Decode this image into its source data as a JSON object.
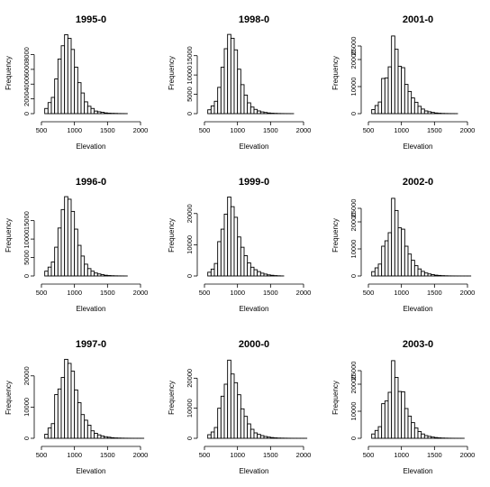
{
  "chart_data": [
    {
      "type": "bar",
      "title": "1995-0",
      "xlabel": "Elevation",
      "ylabel": "Frequency",
      "xlim": [
        500,
        2000
      ],
      "bin_width": 50,
      "x_ticks": [
        500,
        1000,
        1500,
        2000
      ],
      "y_ticks": [
        0,
        2000,
        4000,
        6000,
        8000
      ],
      "y_tick_labels": [
        "0",
        "2000",
        "4000",
        "6000",
        "8000"
      ],
      "ylim": [
        0,
        11000
      ],
      "bin_starts": [
        550,
        600,
        650,
        700,
        750,
        800,
        850,
        900,
        950,
        1000,
        1050,
        1100,
        1150,
        1200,
        1250,
        1300,
        1350,
        1400,
        1450,
        1500,
        1550,
        1600,
        1650,
        1700,
        1750
      ],
      "values": [
        700,
        1500,
        2200,
        4700,
        7400,
        9200,
        10700,
        10200,
        8700,
        6300,
        4200,
        2800,
        1600,
        1000,
        700,
        350,
        250,
        180,
        100,
        60,
        40,
        30,
        15,
        10,
        5
      ]
    },
    {
      "type": "bar",
      "title": "1998-0",
      "xlabel": "Elevation",
      "ylabel": "Frequency",
      "xlim": [
        500,
        2000
      ],
      "bin_width": 50,
      "x_ticks": [
        500,
        1000,
        1500,
        2000
      ],
      "y_ticks": [
        0,
        5000,
        10000,
        15000
      ],
      "y_tick_labels": [
        "0",
        "5000",
        "10000",
        "15000"
      ],
      "ylim": [
        0,
        21000
      ],
      "bin_starts": [
        550,
        600,
        650,
        700,
        750,
        800,
        850,
        900,
        950,
        1000,
        1050,
        1100,
        1150,
        1200,
        1250,
        1300,
        1350,
        1400,
        1450,
        1500,
        1550,
        1600,
        1650,
        1700,
        1750,
        1800
      ],
      "values": [
        1000,
        2000,
        3200,
        6800,
        12000,
        16800,
        20500,
        19500,
        16500,
        11500,
        7500,
        4800,
        2800,
        1700,
        1100,
        700,
        450,
        300,
        180,
        110,
        70,
        40,
        25,
        15,
        10,
        5
      ]
    },
    {
      "type": "bar",
      "title": "2001-0",
      "xlabel": "Elevation",
      "ylabel": "Frequency",
      "xlim": [
        500,
        2000
      ],
      "bin_width": 50,
      "x_ticks": [
        500,
        1000,
        1500,
        2000
      ],
      "y_ticks": [
        0,
        10000,
        20000,
        25000
      ],
      "y_tick_labels": [
        "0",
        "10000",
        "20000",
        "25000"
      ],
      "ylim": [
        0,
        30000
      ],
      "bin_starts": [
        550,
        600,
        650,
        700,
        750,
        800,
        850,
        900,
        950,
        1000,
        1050,
        1100,
        1150,
        1200,
        1250,
        1300,
        1350,
        1400,
        1450,
        1500,
        1550,
        1600,
        1650,
        1700,
        1750,
        1800
      ],
      "values": [
        1500,
        3000,
        4300,
        13000,
        13200,
        17300,
        28700,
        23800,
        17500,
        17000,
        10800,
        8200,
        5800,
        4200,
        2700,
        1700,
        1000,
        700,
        450,
        250,
        150,
        80,
        50,
        30,
        20,
        10
      ]
    },
    {
      "type": "bar",
      "title": "1996-0",
      "xlabel": "Elevation",
      "ylabel": "Frequency",
      "xlim": [
        500,
        2000
      ],
      "bin_width": 50,
      "x_ticks": [
        500,
        1000,
        1500,
        2000
      ],
      "y_ticks": [
        0,
        5000,
        10000,
        15000
      ],
      "y_tick_labels": [
        "0",
        "5000",
        "10000",
        "15000"
      ],
      "ylim": [
        0,
        22000
      ],
      "bin_starts": [
        550,
        600,
        650,
        700,
        750,
        800,
        850,
        900,
        950,
        1000,
        1050,
        1100,
        1150,
        1200,
        1250,
        1300,
        1350,
        1400,
        1450,
        1500,
        1550,
        1600,
        1650,
        1700,
        1750
      ],
      "values": [
        1300,
        2400,
        3800,
        7800,
        13000,
        18000,
        21500,
        20800,
        17500,
        12700,
        8300,
        5400,
        3200,
        2000,
        1300,
        800,
        550,
        350,
        200,
        120,
        70,
        40,
        25,
        15,
        5
      ]
    },
    {
      "type": "bar",
      "title": "1999-0",
      "xlabel": "Elevation",
      "ylabel": "Frequency",
      "xlim": [
        500,
        2000
      ],
      "bin_width": 50,
      "x_ticks": [
        500,
        1000,
        1500,
        2000
      ],
      "y_ticks": [
        0,
        10000,
        20000
      ],
      "y_tick_labels": [
        "0",
        "10000",
        "20000"
      ],
      "ylim": [
        0,
        26000
      ],
      "bin_starts": [
        550,
        600,
        650,
        700,
        750,
        800,
        850,
        900,
        950,
        1000,
        1050,
        1100,
        1150,
        1200,
        1250,
        1300,
        1350,
        1400,
        1450,
        1500,
        1550,
        1600,
        1650
      ],
      "values": [
        1200,
        2200,
        4000,
        11000,
        15000,
        19800,
        25300,
        22200,
        18800,
        12500,
        9200,
        6500,
        4200,
        2800,
        2000,
        1400,
        900,
        600,
        350,
        220,
        120,
        60,
        20
      ]
    },
    {
      "type": "bar",
      "title": "2002-0",
      "xlabel": "Elevation",
      "ylabel": "Frequency",
      "xlim": [
        500,
        2000
      ],
      "bin_width": 50,
      "x_ticks": [
        500,
        1000,
        1500,
        2000
      ],
      "y_ticks": [
        0,
        10000,
        20000,
        25000
      ],
      "y_tick_labels": [
        "0",
        "10000",
        "20000",
        "25000"
      ],
      "ylim": [
        0,
        30000
      ],
      "bin_starts": [
        550,
        600,
        650,
        700,
        750,
        800,
        850,
        900,
        950,
        1000,
        1050,
        1100,
        1150,
        1200,
        1250,
        1300,
        1350,
        1400,
        1450,
        1500,
        1550,
        1600,
        1650,
        1700,
        1750,
        1800,
        1850,
        1900,
        1950,
        2000
      ],
      "values": [
        1600,
        3000,
        4400,
        11000,
        13000,
        16000,
        28700,
        24200,
        17800,
        17300,
        11000,
        8100,
        5800,
        3800,
        2600,
        1700,
        1100,
        750,
        500,
        300,
        200,
        120,
        70,
        40,
        25,
        15,
        10,
        5,
        5,
        3
      ]
    },
    {
      "type": "bar",
      "title": "1997-0",
      "xlabel": "Elevation",
      "ylabel": "Frequency",
      "xlim": [
        500,
        2000
      ],
      "bin_width": 50,
      "x_ticks": [
        500,
        1000,
        1500,
        2000
      ],
      "y_ticks": [
        0,
        10000,
        20000
      ],
      "y_tick_labels": [
        "0",
        "10000",
        "20000"
      ],
      "ylim": [
        0,
        26000
      ],
      "bin_starts": [
        550,
        600,
        650,
        700,
        750,
        800,
        850,
        900,
        950,
        1000,
        1050,
        1100,
        1150,
        1200,
        1250,
        1300,
        1350,
        1400,
        1450,
        1500,
        1550,
        1600,
        1650,
        1700,
        1750,
        1800,
        1850,
        1900,
        1950,
        2000
      ],
      "values": [
        1300,
        3300,
        4700,
        14000,
        15800,
        19500,
        25300,
        24000,
        21500,
        15500,
        11400,
        7600,
        5800,
        4200,
        2400,
        1600,
        1100,
        750,
        500,
        350,
        200,
        120,
        80,
        50,
        30,
        20,
        10,
        5,
        5,
        3
      ]
    },
    {
      "type": "bar",
      "title": "2000-0",
      "xlabel": "Elevation",
      "ylabel": "Frequency",
      "xlim": [
        500,
        2000
      ],
      "bin_width": 50,
      "x_ticks": [
        500,
        1000,
        1500,
        2000
      ],
      "y_ticks": [
        0,
        10000,
        20000
      ],
      "y_tick_labels": [
        "0",
        "10000",
        "20000"
      ],
      "ylim": [
        0,
        27000
      ],
      "bin_starts": [
        550,
        600,
        650,
        700,
        750,
        800,
        850,
        900,
        950,
        1000,
        1050,
        1100,
        1150,
        1200,
        1250,
        1300,
        1350,
        1400,
        1450,
        1500,
        1550,
        1600,
        1650,
        1700,
        1750,
        1800,
        1850,
        1900,
        1950,
        2000
      ],
      "values": [
        1200,
        2100,
        3600,
        10000,
        14000,
        18000,
        26000,
        21400,
        18500,
        14500,
        9800,
        7300,
        4800,
        3000,
        1800,
        1300,
        900,
        600,
        400,
        250,
        150,
        90,
        60,
        40,
        25,
        15,
        10,
        5,
        5,
        3
      ]
    },
    {
      "type": "bar",
      "title": "2003-0",
      "xlabel": "Elevation",
      "ylabel": "Frequency",
      "xlim": [
        500,
        2000
      ],
      "bin_width": 50,
      "x_ticks": [
        500,
        1000,
        1500,
        2000
      ],
      "y_ticks": [
        0,
        10000,
        20000,
        25000
      ],
      "y_tick_labels": [
        "0",
        "10000",
        "20000",
        "25000"
      ],
      "ylim": [
        0,
        30000
      ],
      "bin_starts": [
        550,
        600,
        650,
        700,
        750,
        800,
        850,
        900,
        950,
        1000,
        1050,
        1100,
        1150,
        1200,
        1250,
        1300,
        1350,
        1400,
        1450,
        1500,
        1550,
        1600,
        1650,
        1700,
        1750,
        1800,
        1850,
        1900
      ],
      "values": [
        1600,
        2900,
        4300,
        12800,
        13800,
        17000,
        28700,
        22500,
        17300,
        17200,
        11000,
        8200,
        5800,
        3800,
        2500,
        1600,
        1000,
        700,
        450,
        280,
        170,
        100,
        60,
        35,
        20,
        10,
        5,
        3
      ]
    }
  ]
}
